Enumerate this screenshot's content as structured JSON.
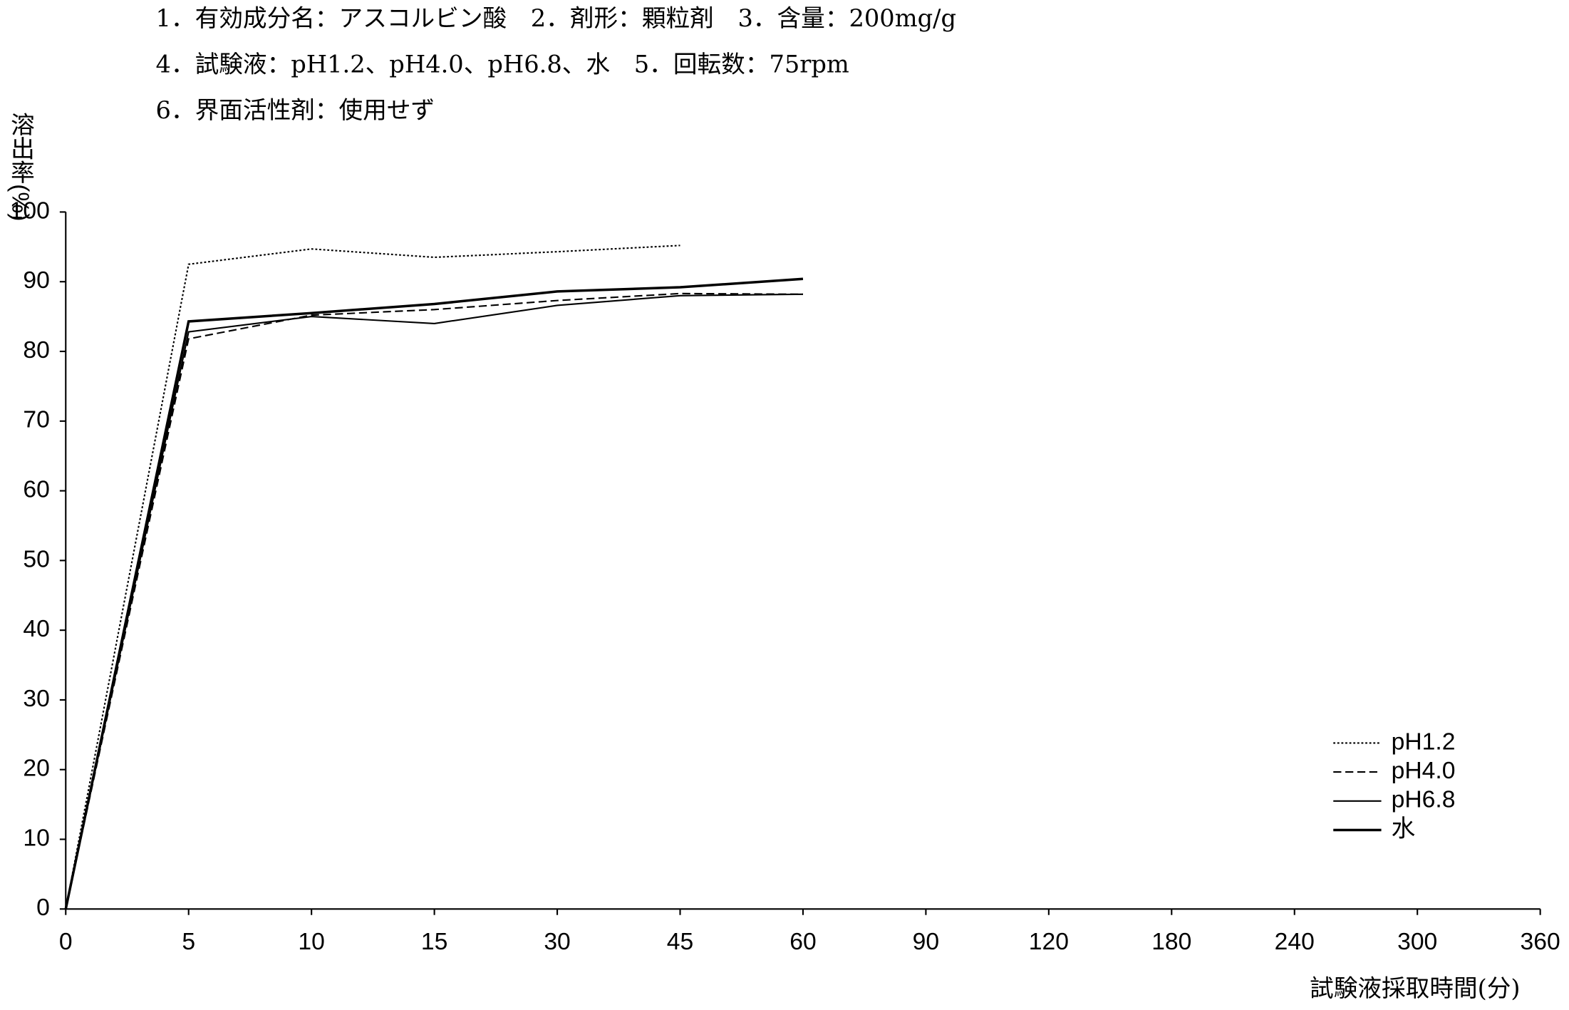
{
  "chart_data": {
    "type": "line",
    "title_lines": [
      "1．有効成分名：アスコルビン酸　2．剤形：顆粒剤　3．含量：200mg/g",
      "4．試験液：pH1.2、pH4.0、pH6.8、水　5．回転数：75rpm",
      "6．界面活性剤：使用せず"
    ],
    "y_label": "溶出率(%)",
    "x_label": "試験液採取時間(分)",
    "categories": [
      "0",
      "5",
      "10",
      "15",
      "30",
      "45",
      "60",
      "90",
      "120",
      "180",
      "240",
      "300",
      "360"
    ],
    "ylim": [
      0,
      100
    ],
    "yticks": [
      0,
      10,
      20,
      30,
      40,
      50,
      60,
      70,
      80,
      90,
      100
    ],
    "grid": false,
    "legend": "lower right",
    "series": [
      {
        "name": "pH1.2",
        "color": "#000000",
        "line_style": "dotted",
        "values": [
          0,
          92.5,
          94.7,
          93.5,
          94.3,
          95.2,
          null,
          null,
          null,
          null,
          null,
          null,
          null
        ]
      },
      {
        "name": "pH4.0",
        "color": "#000000",
        "line_style": "dashed",
        "values": [
          0,
          81.8,
          85.2,
          86.0,
          87.3,
          88.3,
          88.2,
          null,
          null,
          null,
          null,
          null,
          null
        ]
      },
      {
        "name": "pH6.8",
        "color": "#000000",
        "line_style": "thin",
        "values": [
          0,
          82.8,
          85.0,
          84.0,
          86.6,
          88.0,
          88.2,
          null,
          null,
          null,
          null,
          null,
          null
        ]
      },
      {
        "name": "水",
        "color": "#000000",
        "line_style": "solid",
        "values": [
          0,
          84.3,
          85.5,
          86.8,
          88.6,
          89.2,
          90.4,
          null,
          null,
          null,
          null,
          null,
          null
        ]
      }
    ]
  }
}
